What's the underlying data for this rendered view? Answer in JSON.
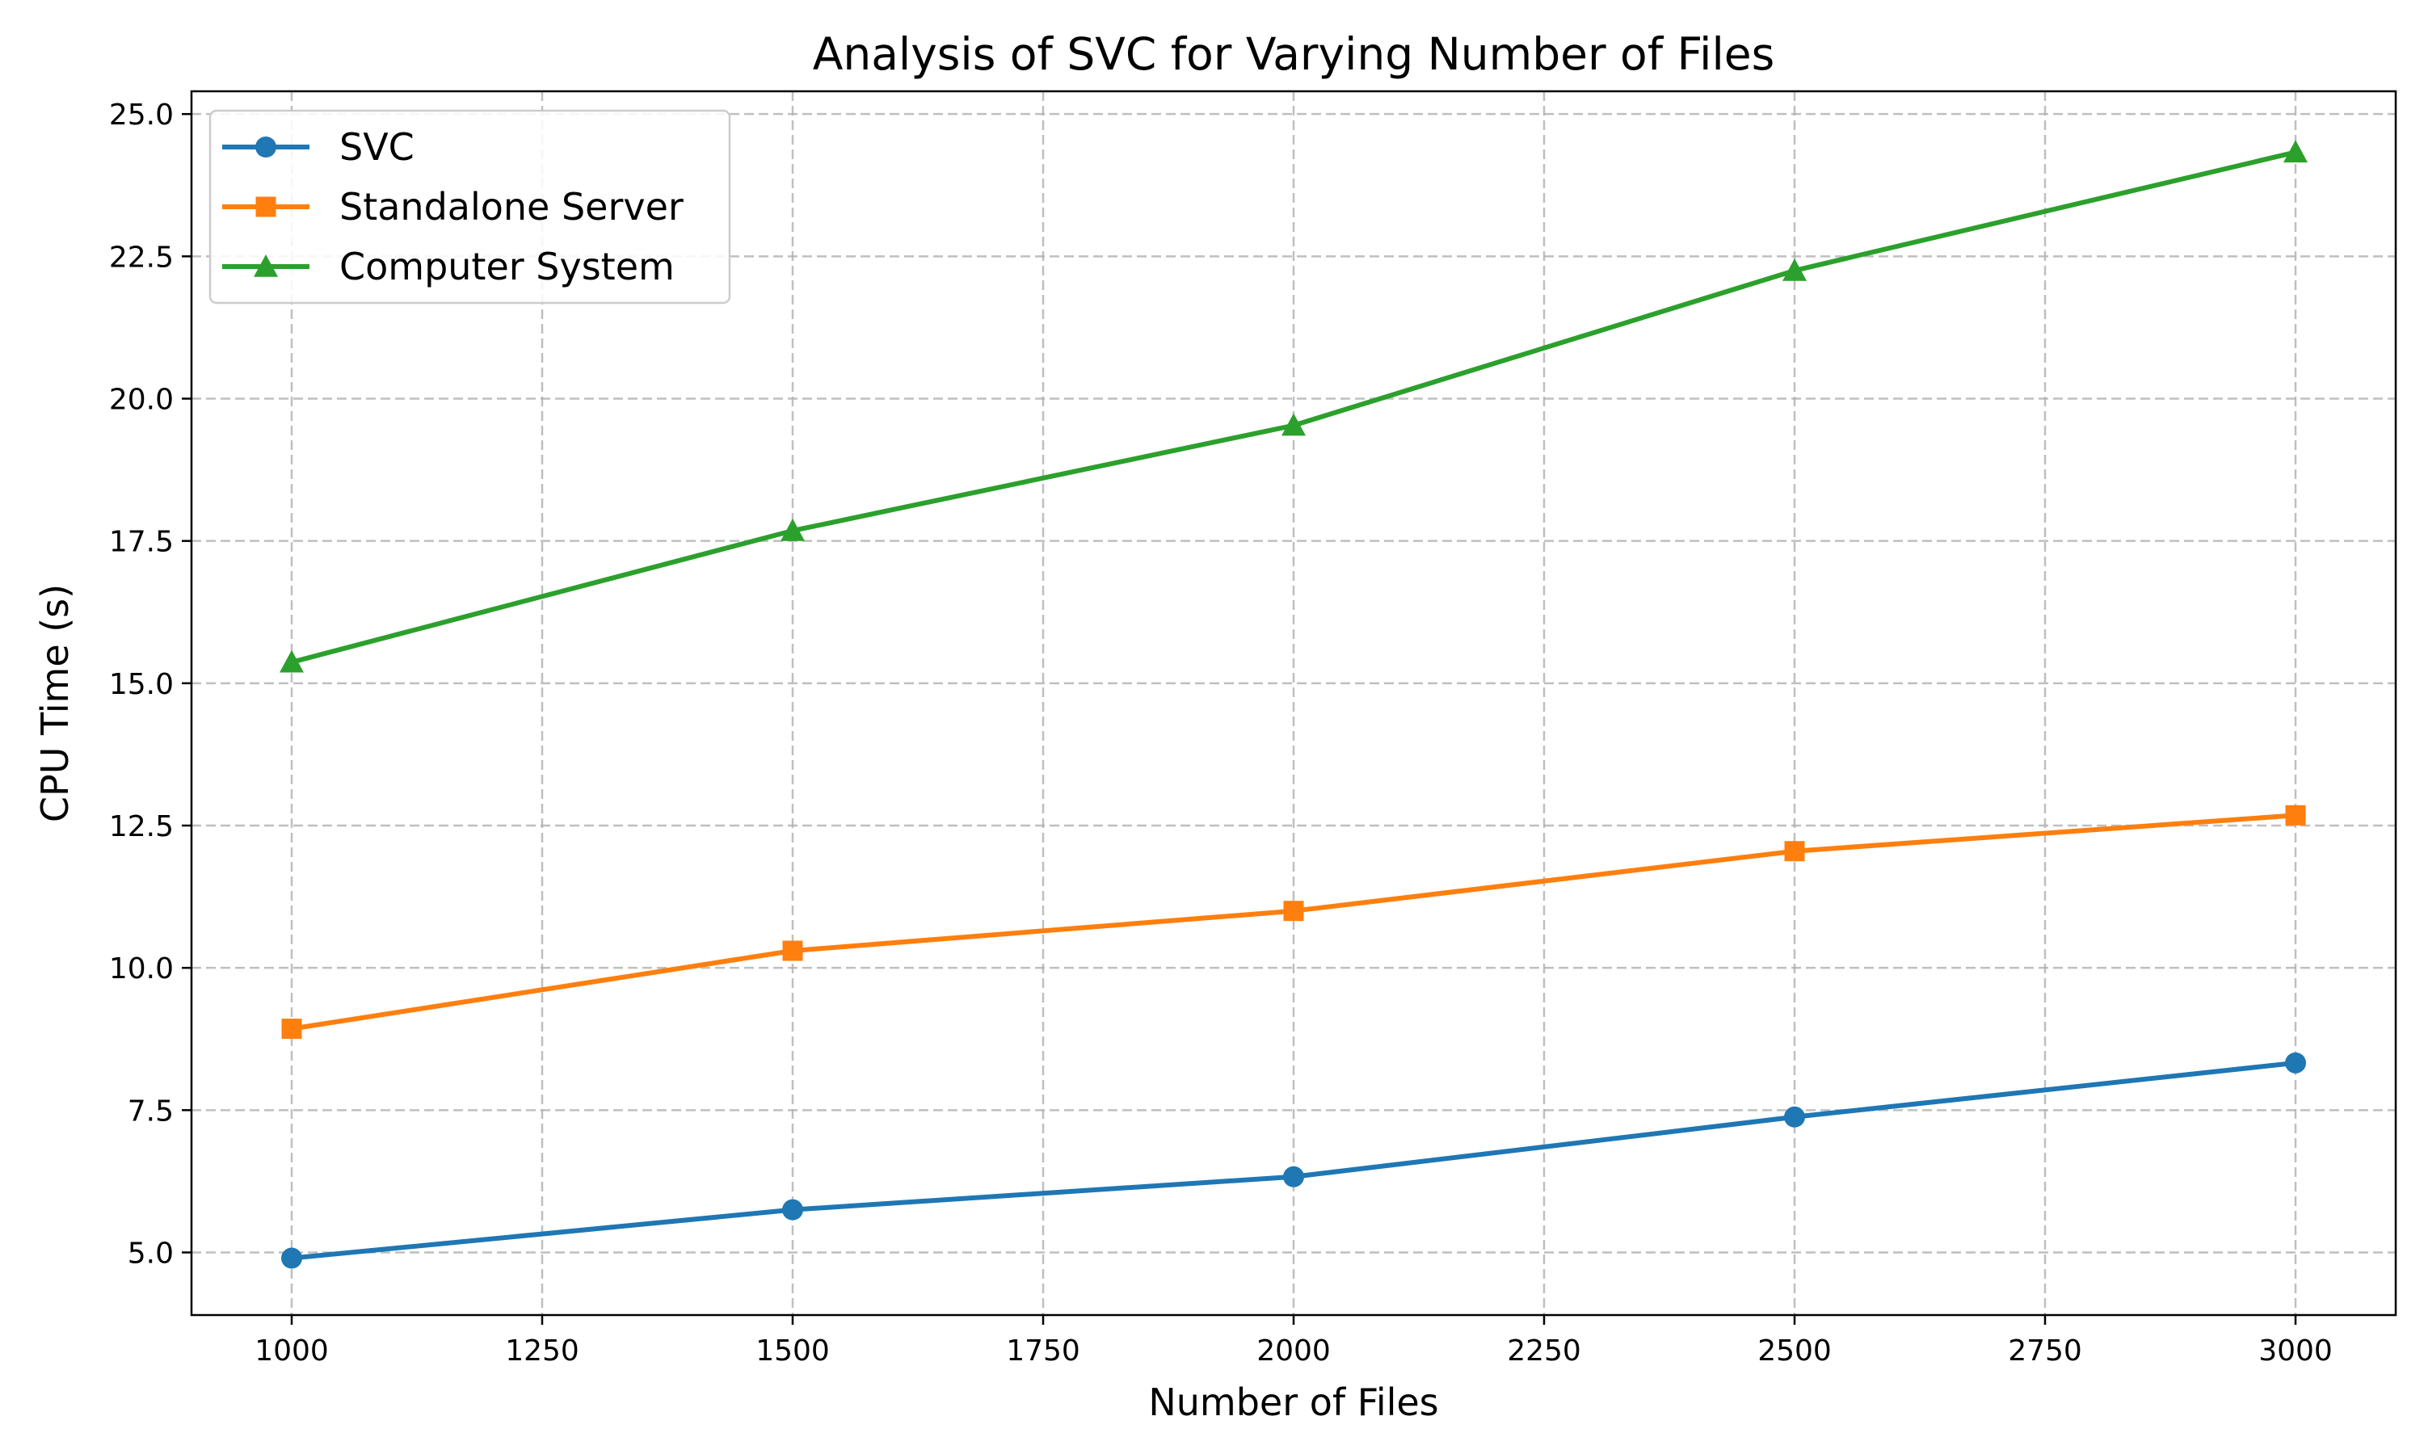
{
  "chart_data": {
    "type": "line",
    "title": "Analysis of SVC for Varying Number of Files",
    "xlabel": "Number of Files",
    "ylabel": "CPU Time (s)",
    "x": [
      1000,
      1500,
      2000,
      2500,
      3000
    ],
    "xlim": [
      900,
      3100
    ],
    "ylim": [
      3.9,
      25.4
    ],
    "xticks": [
      1000,
      1250,
      1500,
      1750,
      2000,
      2250,
      2500,
      2750,
      3000
    ],
    "yticks": [
      5.0,
      7.5,
      10.0,
      12.5,
      15.0,
      17.5,
      20.0,
      22.5,
      25.0
    ],
    "grid": true,
    "legend_position": "top-left",
    "series": [
      {
        "name": "SVC",
        "marker": "circle",
        "color": "#1f77b4",
        "values": [
          4.9,
          5.75,
          6.33,
          7.38,
          8.33
        ]
      },
      {
        "name": "Standalone Server",
        "marker": "square",
        "color": "#ff7f0e",
        "values": [
          8.93,
          10.3,
          11.0,
          12.05,
          12.68
        ]
      },
      {
        "name": "Computer System",
        "marker": "triangle",
        "color": "#2ca02c",
        "values": [
          15.37,
          17.68,
          19.53,
          22.25,
          24.33
        ]
      }
    ]
  }
}
